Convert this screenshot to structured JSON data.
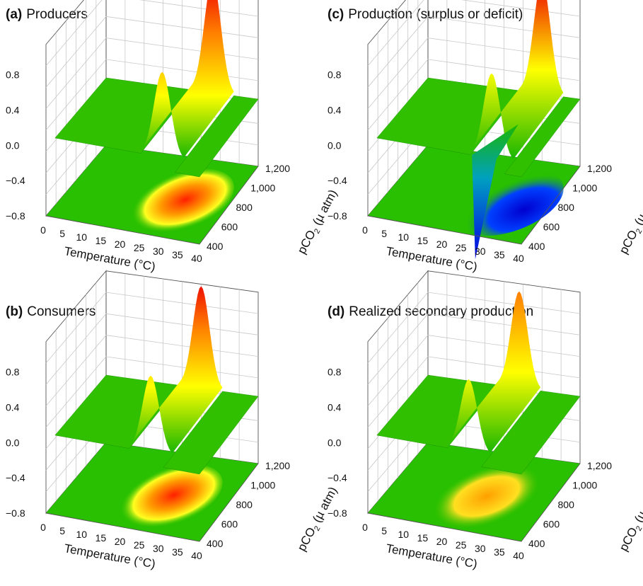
{
  "chart_data": [
    {
      "panel": "a",
      "type": "surface3d",
      "title_letter": "(a)",
      "title": "Producers",
      "xlabel": "Temperature (°C)",
      "ylabel_main": "pCO",
      "ylabel_sub": "2",
      "ylabel_unit": " (µ atm)",
      "x_ticks": [
        "0",
        "5",
        "10",
        "15",
        "20",
        "25",
        "30",
        "35",
        "40"
      ],
      "y_ticks": [
        "400",
        "600",
        "800",
        "1,000",
        "1,200"
      ],
      "z_ticks": [
        "0.8",
        "0.4",
        "0.0",
        "−0.4",
        "−0.8"
      ],
      "xlim": [
        0,
        40
      ],
      "ylim": [
        400,
        1200
      ],
      "zlim": [
        -0.8,
        0.8
      ],
      "peak": {
        "x": 28,
        "z": 1.0
      },
      "surface_shape": "single positive peak near 28 °C, zero elsewhere",
      "colors": [
        "#00aa00",
        "#ffff00",
        "#ff0000",
        "#0000ff"
      ]
    },
    {
      "panel": "b",
      "type": "surface3d",
      "title_letter": "(b)",
      "title": "Consumers",
      "xlabel": "Temperature (°C)",
      "ylabel_main": "pCO",
      "ylabel_sub": "2",
      "ylabel_unit": " (µ atm)",
      "x_ticks": [
        "0",
        "5",
        "10",
        "15",
        "20",
        "25",
        "30",
        "35",
        "40"
      ],
      "y_ticks": [
        "400",
        "600",
        "800",
        "1,000",
        "1,200"
      ],
      "z_ticks": [
        "0.8",
        "0.4",
        "0.0",
        "−0.4",
        "−0.8"
      ],
      "xlim": [
        0,
        40
      ],
      "ylim": [
        400,
        1200
      ],
      "zlim": [
        -0.8,
        0.8
      ],
      "peak": {
        "x": 25,
        "z": 0.9
      },
      "surface_shape": "broad positive peak near 25 °C",
      "colors": [
        "#00aa00",
        "#ffff00",
        "#ff0000"
      ]
    },
    {
      "panel": "c",
      "type": "surface3d",
      "title_letter": "(c)",
      "title": "Production (surplus or deficit)",
      "xlabel": "Temperature (°C)",
      "ylabel_main": "pCO",
      "ylabel_sub": "2",
      "ylabel_unit": " (µ atm)",
      "x_ticks": [
        "0",
        "5",
        "10",
        "15",
        "20",
        "25",
        "30",
        "35",
        "40"
      ],
      "y_ticks": [
        "400",
        "600",
        "800",
        "1,000",
        "1,200"
      ],
      "z_ticks": [
        "0.8",
        "0.4",
        "0.0",
        "−0.4",
        "−0.8"
      ],
      "xlim": [
        0,
        40
      ],
      "ylim": [
        400,
        1200
      ],
      "zlim": [
        -0.8,
        0.8
      ],
      "peak": {
        "x": 30,
        "z": 1.0
      },
      "trough": {
        "x": 28,
        "z": -0.9
      },
      "surface_shape": "positive peak at high pCO2, deep negative trough at low pCO2",
      "colors": [
        "#00aa00",
        "#ffff00",
        "#ff0000",
        "#0000ff"
      ]
    },
    {
      "panel": "d",
      "type": "surface3d",
      "title_letter": "(d)",
      "title": "Realized secondary production",
      "xlabel": "Temperature (°C)",
      "ylabel_main": "pCO",
      "ylabel_sub": "2",
      "ylabel_unit": " (µ atm)",
      "x_ticks": [
        "0",
        "5",
        "10",
        "15",
        "20",
        "25",
        "30",
        "35",
        "40"
      ],
      "y_ticks": [
        "400",
        "600",
        "800",
        "1,000",
        "1,200"
      ],
      "z_ticks": [
        "0.8",
        "0.4",
        "0.0",
        "−0.4",
        "−0.8"
      ],
      "xlim": [
        0,
        40
      ],
      "ylim": [
        400,
        1200
      ],
      "zlim": [
        -0.8,
        0.8
      ],
      "peak": {
        "x": 24,
        "z": 0.85
      },
      "surface_shape": "moderate positive plateau near 20–28 °C",
      "colors": [
        "#00aa00",
        "#ffff00",
        "#ff8000"
      ]
    }
  ]
}
